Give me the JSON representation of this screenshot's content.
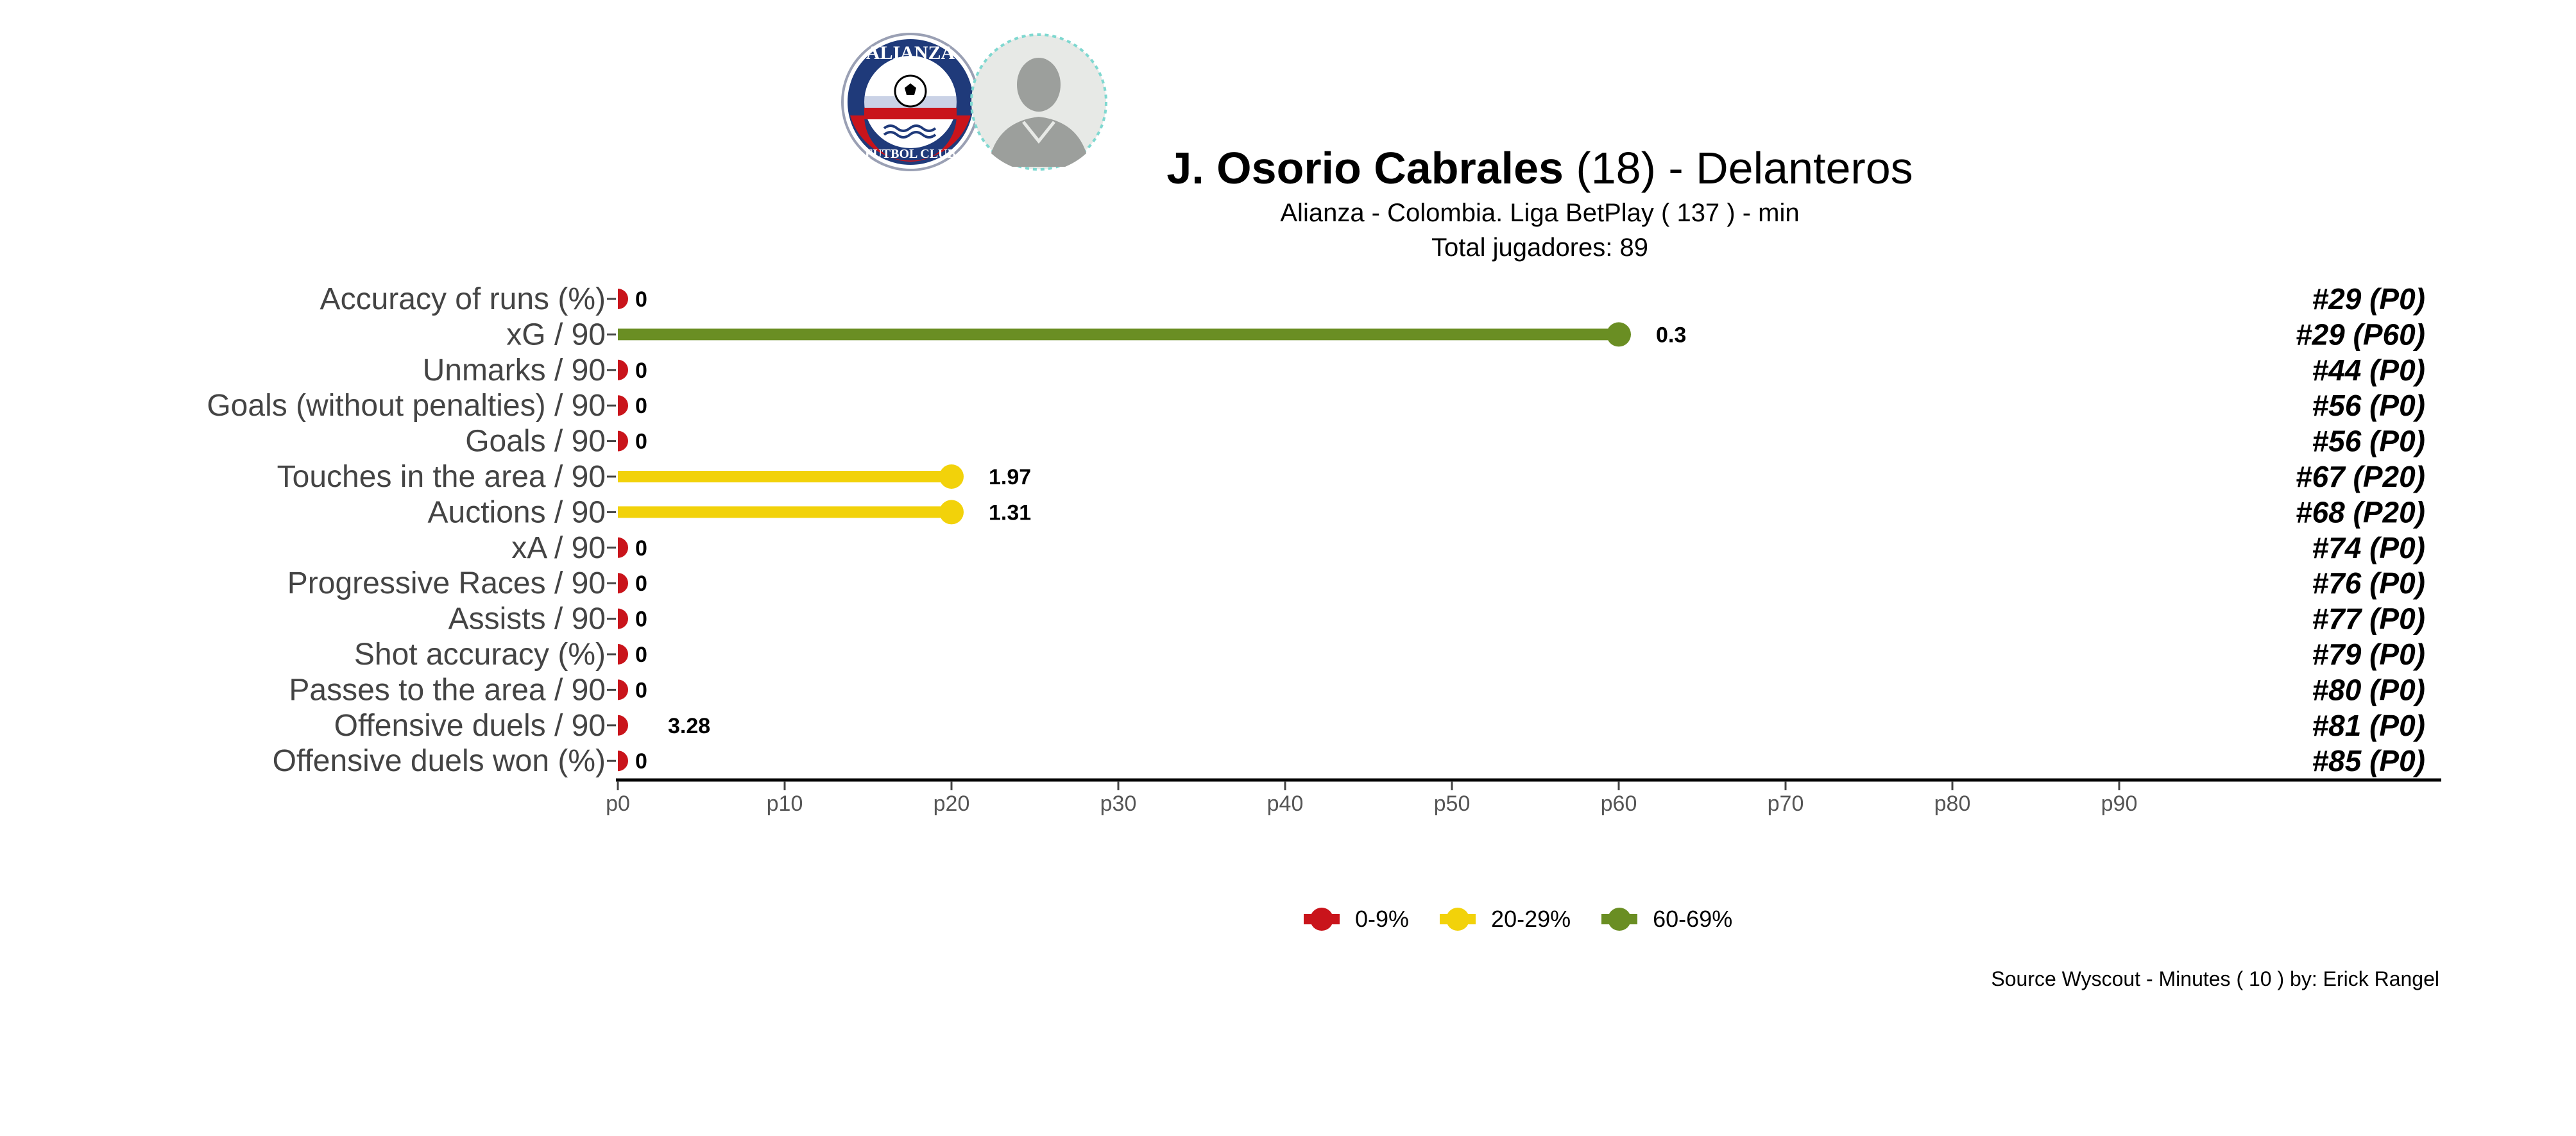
{
  "header": {
    "player_name": "J. Osorio Cabrales",
    "age": "(18)",
    "separator": "-",
    "position": "Delanteros",
    "subtitle_line1": "Alianza  -  Colombia. Liga BetPlay  ( 137 ) - min",
    "subtitle_line2": "Total jugadores:  89",
    "club_logo_text_top": "ALIANZA",
    "club_logo_text_bottom": "FUTBOL CLUB"
  },
  "footer": {
    "source": "Source Wyscout - Minutes ( 10 ) by: Erick Rangel"
  },
  "legend": [
    {
      "label": "0-9%",
      "color": "#c9141b"
    },
    {
      "label": "20-29%",
      "color": "#f2d20a"
    },
    {
      "label": "60-69%",
      "color": "#6a8e23"
    }
  ],
  "chart_data": {
    "type": "bar",
    "orientation": "horizontal-lollipop",
    "x_axis_ticks": [
      "p0",
      "p10",
      "p20",
      "p30",
      "p40",
      "p50",
      "p60",
      "p70",
      "p80",
      "p90"
    ],
    "xlim": [
      0,
      100
    ],
    "categories": [
      "Accuracy of runs (%)",
      "xG / 90",
      "Unmarks / 90",
      "Goals (without penalties) / 90",
      "Goals / 90",
      "Touches in the area / 90",
      "Auctions / 90",
      "xA / 90",
      "Progressive Races / 90",
      "Assists / 90",
      "Shot accuracy (%)",
      "Passes to the area / 90",
      "Offensive duels / 90",
      "Offensive duels won (%)"
    ],
    "percentiles": [
      0,
      60,
      0,
      0,
      0,
      20,
      20,
      0,
      0,
      0,
      0,
      0,
      0,
      0
    ],
    "value_labels": [
      "0",
      "0.3",
      "0",
      "0",
      "0",
      "1.97",
      "1.31",
      "0",
      "0",
      "0",
      "0",
      "0",
      "3.28",
      "0"
    ],
    "rank_labels": [
      "#29 (P0)",
      "#29 (P60)",
      "#44 (P0)",
      "#56 (P0)",
      "#56 (P0)",
      "#67 (P20)",
      "#68 (P20)",
      "#74 (P0)",
      "#76 (P0)",
      "#77 (P0)",
      "#79 (P0)",
      "#80 (P0)",
      "#81 (P0)",
      "#85 (P0)"
    ],
    "colors": {
      "0-9%": "#c9141b",
      "20-29%": "#f2d20a",
      "60-69%": "#6a8e23"
    },
    "legend_position": "bottom",
    "grid": false
  }
}
